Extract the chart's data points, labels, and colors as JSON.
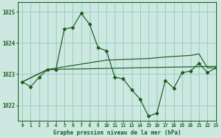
{
  "bg_color": "#cce8e0",
  "grid_color": "#99ccbb",
  "line_color": "#1a5e20",
  "title": "Graphe pression niveau de la mer (hPa)",
  "xlim": [
    -0.5,
    23
  ],
  "ylim": [
    1021.5,
    1025.3
  ],
  "yticks": [
    1022,
    1023,
    1024,
    1025
  ],
  "xticks": [
    0,
    1,
    2,
    3,
    4,
    5,
    6,
    7,
    8,
    9,
    10,
    11,
    12,
    13,
    14,
    15,
    16,
    17,
    18,
    19,
    20,
    21,
    22,
    23
  ],
  "series1_x": [
    0,
    1,
    2,
    3,
    4,
    5,
    6,
    7,
    8,
    9,
    10,
    11,
    12,
    13,
    14,
    15,
    16,
    17,
    18,
    19,
    20,
    21,
    22,
    23
  ],
  "series1_y": [
    1022.75,
    1022.6,
    1022.9,
    1023.15,
    1023.15,
    1024.45,
    1024.5,
    1024.95,
    1024.6,
    1023.85,
    1023.75,
    1022.9,
    1022.85,
    1022.5,
    1022.2,
    1021.65,
    1021.75,
    1022.8,
    1022.55,
    1023.05,
    1023.1,
    1023.35,
    1023.05,
    1023.2
  ],
  "series2_x": [
    0,
    3,
    23
  ],
  "series2_y": [
    1022.75,
    1023.15,
    1023.25
  ],
  "series3_x": [
    0,
    3,
    10,
    15,
    17,
    20,
    21,
    22,
    23
  ],
  "series3_y": [
    1022.75,
    1023.15,
    1023.45,
    1023.5,
    1023.55,
    1023.6,
    1023.65,
    1023.2,
    1023.2
  ]
}
